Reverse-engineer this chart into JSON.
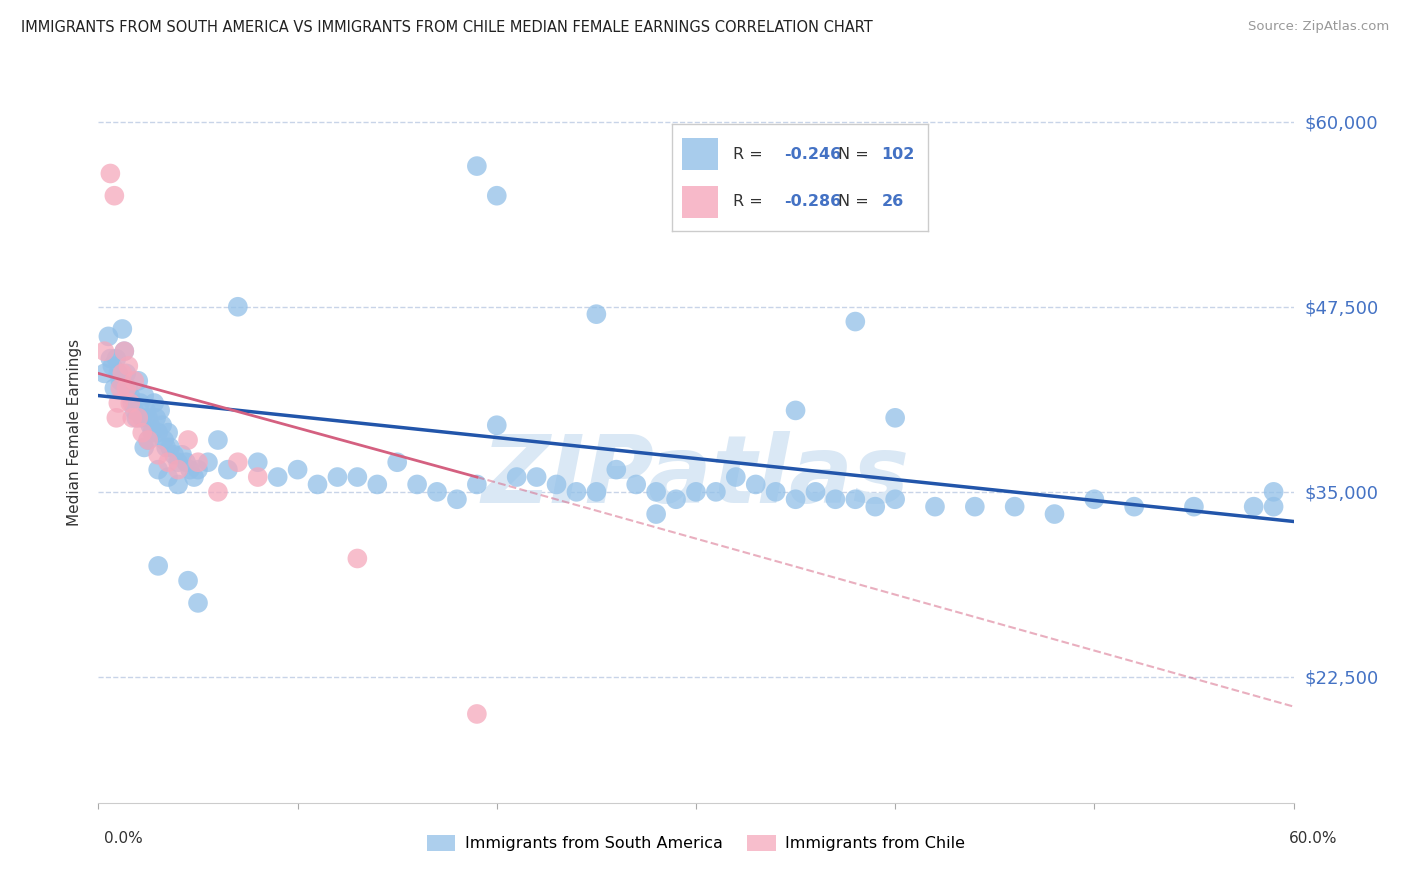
{
  "title": "IMMIGRANTS FROM SOUTH AMERICA VS IMMIGRANTS FROM CHILE MEDIAN FEMALE EARNINGS CORRELATION CHART",
  "source": "Source: ZipAtlas.com",
  "ylabel": "Median Female Earnings",
  "y_ticks": [
    22500,
    35000,
    47500,
    60000
  ],
  "y_tick_labels": [
    "$22,500",
    "$35,000",
    "$47,500",
    "$60,000"
  ],
  "x_min": 0.0,
  "x_max": 0.6,
  "y_min": 14000,
  "y_max": 64000,
  "series1_label": "Immigrants from South America",
  "series1_color": "#92c0e8",
  "series1_R": "-0.246",
  "series1_N": "102",
  "series2_label": "Immigrants from Chile",
  "series2_color": "#f5a8bc",
  "series2_R": "-0.286",
  "series2_N": "26",
  "trendline1_color": "#2255aa",
  "trendline2_color": "#d46080",
  "watermark": "ZIPatlas",
  "watermark_color": "#dae8f5",
  "legend_text_color": "#4472c4",
  "blue_scatter_x": [
    0.003,
    0.005,
    0.006,
    0.007,
    0.008,
    0.009,
    0.01,
    0.011,
    0.012,
    0.013,
    0.014,
    0.015,
    0.016,
    0.017,
    0.018,
    0.019,
    0.02,
    0.021,
    0.022,
    0.023,
    0.024,
    0.025,
    0.026,
    0.027,
    0.028,
    0.029,
    0.03,
    0.031,
    0.032,
    0.033,
    0.034,
    0.035,
    0.036,
    0.038,
    0.04,
    0.042,
    0.044,
    0.046,
    0.048,
    0.05,
    0.055,
    0.06,
    0.065,
    0.07,
    0.08,
    0.09,
    0.1,
    0.11,
    0.12,
    0.13,
    0.14,
    0.15,
    0.16,
    0.17,
    0.18,
    0.19,
    0.2,
    0.21,
    0.22,
    0.23,
    0.24,
    0.25,
    0.26,
    0.27,
    0.28,
    0.29,
    0.3,
    0.31,
    0.32,
    0.33,
    0.34,
    0.35,
    0.36,
    0.37,
    0.38,
    0.39,
    0.4,
    0.42,
    0.44,
    0.46,
    0.48,
    0.5,
    0.52,
    0.55,
    0.58,
    0.59,
    0.023,
    0.025,
    0.03,
    0.035,
    0.04,
    0.03,
    0.045,
    0.05,
    0.19,
    0.2,
    0.25,
    0.38,
    0.4,
    0.35,
    0.59,
    0.28
  ],
  "blue_scatter_y": [
    43000,
    45500,
    44000,
    43500,
    42000,
    44000,
    43000,
    42500,
    46000,
    44500,
    43000,
    42000,
    41500,
    41000,
    40500,
    40000,
    42500,
    41000,
    40000,
    41500,
    40500,
    40000,
    39500,
    39000,
    41000,
    40000,
    39000,
    40500,
    39500,
    38500,
    38000,
    39000,
    38000,
    37500,
    37000,
    37500,
    37000,
    36500,
    36000,
    36500,
    37000,
    38500,
    36500,
    47500,
    37000,
    36000,
    36500,
    35500,
    36000,
    36000,
    35500,
    37000,
    35500,
    35000,
    34500,
    35500,
    39500,
    36000,
    36000,
    35500,
    35000,
    35000,
    36500,
    35500,
    35000,
    34500,
    35000,
    35000,
    36000,
    35500,
    35000,
    34500,
    35000,
    34500,
    34500,
    34000,
    34500,
    34000,
    34000,
    34000,
    33500,
    34500,
    34000,
    34000,
    34000,
    35000,
    38000,
    38500,
    36500,
    36000,
    35500,
    30000,
    29000,
    27500,
    57000,
    55000,
    47000,
    46500,
    40000,
    40500,
    34000,
    33500
  ],
  "pink_scatter_x": [
    0.003,
    0.006,
    0.008,
    0.009,
    0.01,
    0.011,
    0.012,
    0.013,
    0.014,
    0.015,
    0.016,
    0.017,
    0.018,
    0.02,
    0.022,
    0.025,
    0.03,
    0.035,
    0.04,
    0.045,
    0.05,
    0.06,
    0.07,
    0.08,
    0.13,
    0.19
  ],
  "pink_scatter_y": [
    44500,
    56500,
    55000,
    40000,
    41000,
    42000,
    43000,
    44500,
    42000,
    43500,
    41000,
    40000,
    42500,
    40000,
    39000,
    38500,
    37500,
    37000,
    36500,
    38500,
    37000,
    35000,
    37000,
    36000,
    30500,
    20000
  ],
  "trendline1_x0": 0.0,
  "trendline1_x1": 0.6,
  "trendline1_y0": 41500,
  "trendline1_y1": 33000,
  "trendline2_solid_x0": 0.0,
  "trendline2_solid_x1": 0.19,
  "trendline2_solid_y0": 43000,
  "trendline2_solid_y1": 36000,
  "trendline2_dash_x0": 0.19,
  "trendline2_dash_x1": 0.6,
  "trendline2_dash_y0": 36000,
  "trendline2_dash_y1": 20500,
  "grid_color": "#c8d4e8",
  "background_color": "#ffffff"
}
